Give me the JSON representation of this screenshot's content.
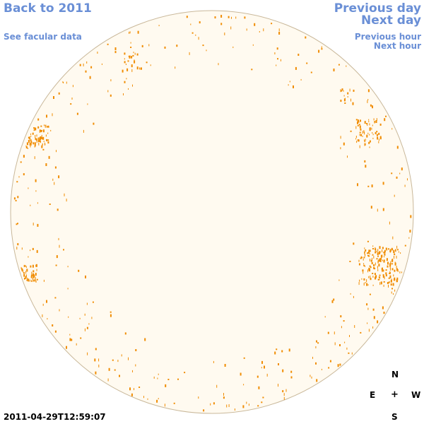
{
  "nav": {
    "back_label": "Back to 2011",
    "facular_label": "See facular data",
    "prev_day_label": "Previous day",
    "next_day_label": "Next day",
    "prev_hour_label": "Previous hour",
    "next_hour_label": "Next hour"
  },
  "compass": {
    "north": "N",
    "east": "E",
    "center": "+",
    "west": "W",
    "south": "S"
  },
  "timestamp": "2011-04-29T12:59:07",
  "colors": {
    "link": "#6a8fd6",
    "disk_fill": "#fffaf0",
    "disk_edge": "#c9b89a",
    "facula": "#f08c00"
  }
}
